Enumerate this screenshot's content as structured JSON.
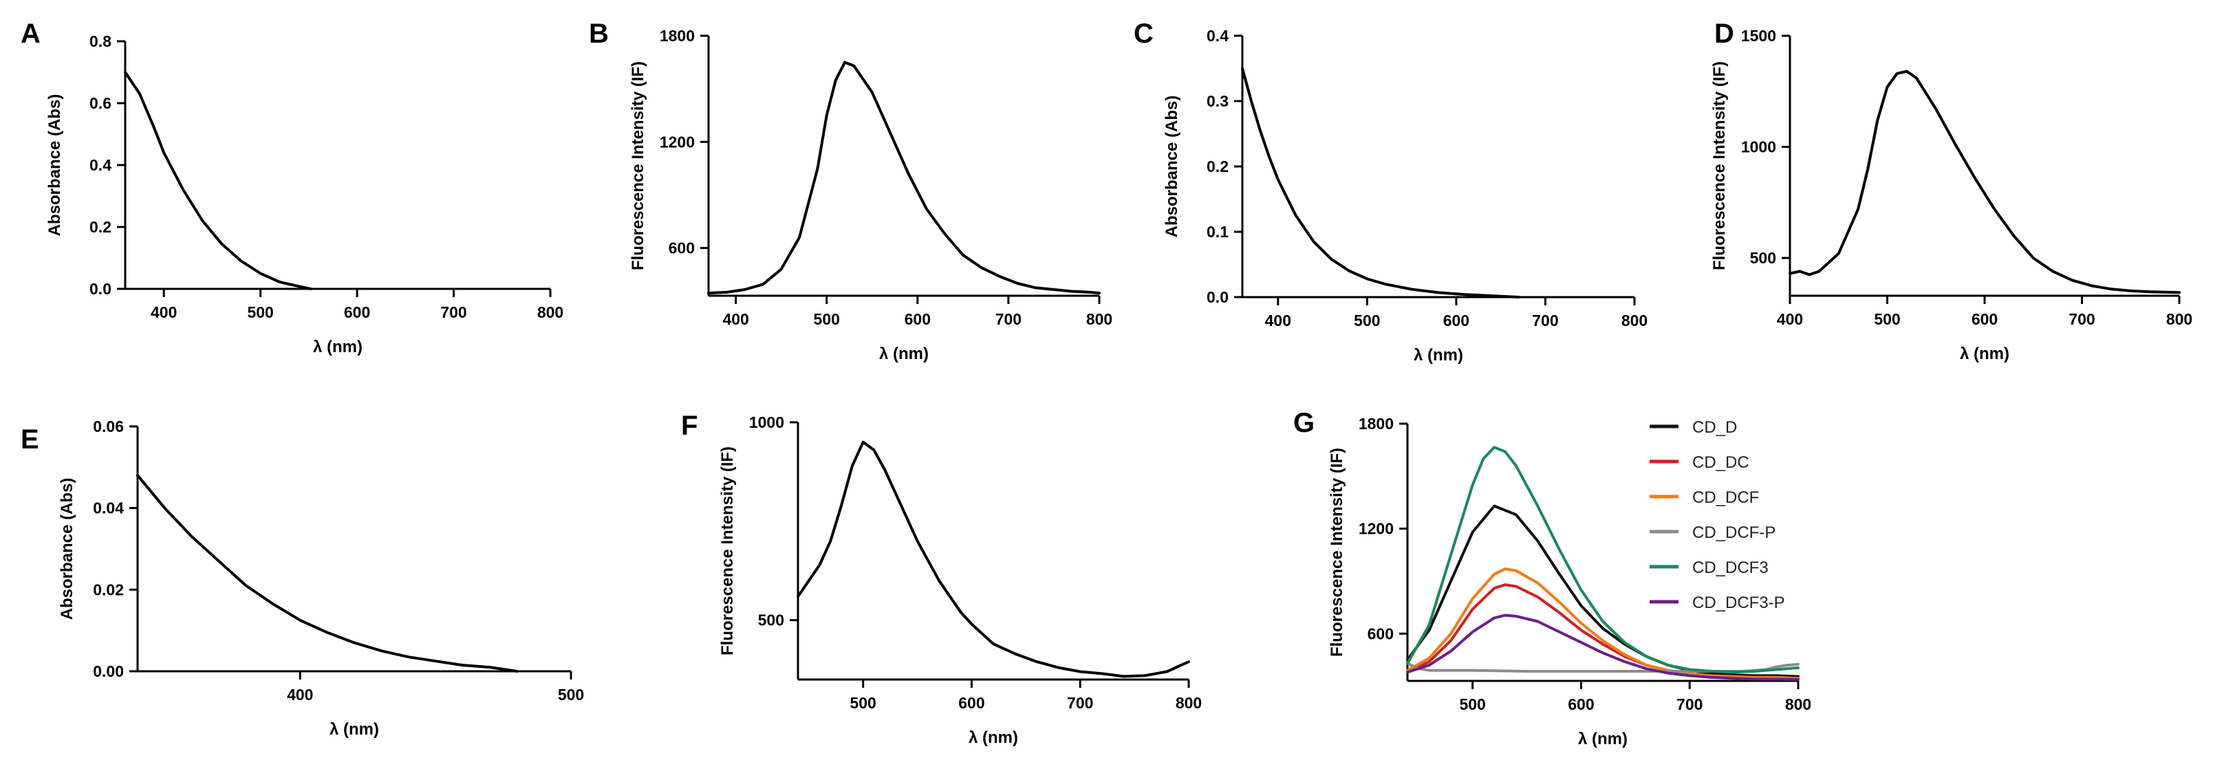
{
  "chart_data": [
    {
      "panel": "A",
      "type": "line",
      "xlabel": "λ (nm)",
      "ylabel": "Absorbance (Abs)",
      "xlim": [
        360,
        800
      ],
      "ylim": [
        0,
        0.8
      ],
      "xticks": [
        400,
        500,
        600,
        700,
        800
      ],
      "yticks": [
        0.0,
        0.2,
        0.4,
        0.6,
        0.8
      ],
      "xtick_labels": [
        "400",
        "500",
        "600",
        "700",
        "800"
      ],
      "ytick_labels": [
        "0.0",
        "0.2",
        "0.4",
        "0.6",
        "0.8"
      ],
      "grid": false,
      "series": [
        {
          "color": "#000000",
          "x": [
            360,
            375,
            390,
            400,
            420,
            440,
            460,
            480,
            500,
            520,
            540,
            552
          ],
          "y": [
            0.7,
            0.63,
            0.52,
            0.44,
            0.32,
            0.22,
            0.145,
            0.09,
            0.05,
            0.022,
            0.008,
            0.0
          ]
        }
      ]
    },
    {
      "panel": "B",
      "type": "line",
      "xlabel": "λ (nm)",
      "ylabel": "Fluorescence Intensity (IF)",
      "xlim": [
        370,
        800
      ],
      "ylim": [
        330,
        1800
      ],
      "xticks": [
        400,
        500,
        600,
        700,
        800
      ],
      "yticks": [
        600,
        1200,
        1800
      ],
      "xtick_labels": [
        "400",
        "500",
        "600",
        "700",
        "800"
      ],
      "ytick_labels": [
        "600",
        "1200",
        "1800"
      ],
      "grid": false,
      "series": [
        {
          "color": "#000000",
          "x": [
            370,
            390,
            410,
            430,
            450,
            470,
            490,
            500,
            510,
            520,
            530,
            550,
            570,
            590,
            610,
            630,
            650,
            670,
            690,
            710,
            730,
            750,
            770,
            790,
            800
          ],
          "y": [
            345,
            350,
            365,
            395,
            480,
            660,
            1050,
            1350,
            1550,
            1650,
            1630,
            1480,
            1250,
            1020,
            820,
            680,
            560,
            490,
            440,
            400,
            375,
            365,
            355,
            350,
            345
          ]
        }
      ]
    },
    {
      "panel": "C",
      "type": "line",
      "xlabel": "λ (nm)",
      "ylabel": "Absorbance (Abs)",
      "xlim": [
        360,
        800
      ],
      "ylim": [
        0,
        0.4
      ],
      "xticks": [
        400,
        500,
        600,
        700,
        800
      ],
      "yticks": [
        0.0,
        0.1,
        0.2,
        0.3,
        0.4
      ],
      "xtick_labels": [
        "400",
        "500",
        "600",
        "700",
        "800"
      ],
      "ytick_labels": [
        "0.0",
        "0.1",
        "0.2",
        "0.3",
        "0.4"
      ],
      "grid": false,
      "series": [
        {
          "color": "#000000",
          "x": [
            360,
            370,
            380,
            390,
            400,
            420,
            440,
            460,
            480,
            500,
            520,
            550,
            580,
            610,
            640,
            670
          ],
          "y": [
            0.35,
            0.3,
            0.255,
            0.215,
            0.18,
            0.125,
            0.085,
            0.058,
            0.04,
            0.028,
            0.02,
            0.012,
            0.007,
            0.004,
            0.002,
            0.0
          ]
        }
      ]
    },
    {
      "panel": "D",
      "type": "line",
      "xlabel": "λ (nm)",
      "ylabel": "Fluorescence Intensity (IF)",
      "xlim": [
        400,
        800
      ],
      "ylim": [
        330,
        1500
      ],
      "xticks": [
        400,
        500,
        600,
        700,
        800
      ],
      "yticks": [
        500,
        1000,
        1500
      ],
      "xtick_labels": [
        "400",
        "500",
        "600",
        "700",
        "800"
      ],
      "ytick_labels": [
        "500",
        "1000",
        "1500"
      ],
      "grid": false,
      "series": [
        {
          "color": "#000000",
          "x": [
            400,
            410,
            420,
            430,
            450,
            470,
            480,
            490,
            500,
            510,
            520,
            530,
            550,
            570,
            590,
            610,
            630,
            650,
            670,
            690,
            710,
            730,
            750,
            770,
            800
          ],
          "y": [
            430,
            440,
            425,
            440,
            520,
            720,
            900,
            1120,
            1270,
            1330,
            1340,
            1310,
            1170,
            1010,
            860,
            720,
            600,
            500,
            440,
            400,
            375,
            360,
            352,
            348,
            345
          ]
        }
      ]
    },
    {
      "panel": "E",
      "type": "line",
      "xlabel": "λ (nm)",
      "ylabel": "Absorbance (Abs)",
      "xlim": [
        340,
        500
      ],
      "ylim": [
        0,
        0.06
      ],
      "xticks": [
        400,
        500
      ],
      "yticks": [
        0.0,
        0.02,
        0.04,
        0.06
      ],
      "xtick_labels": [
        "400",
        "500"
      ],
      "ytick_labels": [
        "0.00",
        "0.02",
        "0.04",
        "0.06"
      ],
      "grid": false,
      "series": [
        {
          "color": "#000000",
          "x": [
            340,
            350,
            360,
            370,
            380,
            390,
            400,
            410,
            420,
            430,
            440,
            450,
            460,
            470,
            475,
            480
          ],
          "y": [
            0.048,
            0.04,
            0.033,
            0.027,
            0.021,
            0.0165,
            0.0125,
            0.0095,
            0.007,
            0.005,
            0.0035,
            0.0025,
            0.0015,
            0.001,
            0.0005,
            0.0
          ]
        }
      ]
    },
    {
      "panel": "F",
      "type": "line",
      "xlabel": "λ (nm)",
      "ylabel": "Fluorescence Intensity (IF)",
      "xlim": [
        440,
        800
      ],
      "ylim": [
        350,
        1000
      ],
      "xticks": [
        500,
        600,
        700,
        800
      ],
      "yticks": [
        500,
        1000
      ],
      "xtick_labels": [
        "500",
        "600",
        "700",
        "800"
      ],
      "ytick_labels": [
        "500",
        "1000"
      ],
      "grid": false,
      "series": [
        {
          "color": "#000000",
          "x": [
            440,
            450,
            460,
            470,
            480,
            490,
            500,
            510,
            520,
            530,
            540,
            550,
            560,
            570,
            580,
            590,
            600,
            620,
            640,
            660,
            680,
            700,
            720,
            740,
            760,
            780,
            800
          ],
          "y": [
            560,
            600,
            640,
            700,
            790,
            890,
            950,
            930,
            880,
            820,
            760,
            700,
            650,
            600,
            560,
            520,
            490,
            440,
            415,
            395,
            380,
            370,
            365,
            358,
            360,
            370,
            395
          ]
        }
      ]
    },
    {
      "panel": "G",
      "type": "line",
      "xlabel": "λ (nm)",
      "ylabel": "Fluorescence Intensity (IF)",
      "xlim": [
        440,
        800
      ],
      "ylim": [
        330,
        1800
      ],
      "xticks": [
        500,
        600,
        700,
        800
      ],
      "yticks": [
        600,
        1200,
        1800
      ],
      "xtick_labels": [
        "500",
        "600",
        "700",
        "800"
      ],
      "ytick_labels": [
        "600",
        "1200",
        "1800"
      ],
      "grid": false,
      "legend": "top-right",
      "series": [
        {
          "name": "CD_D",
          "color": "#111111",
          "x": [
            440,
            460,
            480,
            500,
            520,
            540,
            560,
            580,
            600,
            620,
            640,
            660,
            680,
            700,
            720,
            740,
            760,
            780,
            800
          ],
          "y": [
            450,
            620,
            900,
            1180,
            1330,
            1280,
            1130,
            940,
            760,
            630,
            540,
            470,
            420,
            390,
            370,
            365,
            360,
            360,
            355
          ]
        },
        {
          "name": "CD_DC",
          "color": "#d42020",
          "x": [
            440,
            460,
            480,
            500,
            520,
            530,
            540,
            560,
            580,
            600,
            620,
            640,
            660,
            680,
            700,
            720,
            740,
            760,
            780,
            800
          ],
          "y": [
            380,
            440,
            560,
            740,
            860,
            880,
            870,
            810,
            720,
            620,
            540,
            470,
            420,
            390,
            370,
            360,
            355,
            350,
            350,
            345
          ]
        },
        {
          "name": "CD_DCF",
          "color": "#f07d14",
          "x": [
            440,
            460,
            480,
            500,
            520,
            530,
            540,
            560,
            580,
            600,
            620,
            640,
            660,
            680,
            700,
            720,
            740,
            760,
            780,
            800
          ],
          "y": [
            390,
            460,
            600,
            800,
            940,
            970,
            960,
            890,
            780,
            660,
            560,
            480,
            420,
            390,
            370,
            360,
            355,
            350,
            350,
            345
          ]
        },
        {
          "name": "CD_DCF-P",
          "color": "#8c8c8c",
          "x": [
            440,
            450,
            460,
            500,
            550,
            600,
            650,
            700,
            750,
            770,
            780,
            790,
            800
          ],
          "y": [
            430,
            400,
            390,
            390,
            385,
            385,
            385,
            385,
            385,
            395,
            410,
            420,
            425
          ]
        },
        {
          "name": "CD_DCF3",
          "color": "#1a8a5a",
          "x": [
            440,
            460,
            480,
            500,
            510,
            520,
            530,
            540,
            560,
            580,
            600,
            620,
            640,
            660,
            680,
            700,
            720,
            740,
            760,
            780,
            800
          ],
          "y": [
            430,
            650,
            1050,
            1450,
            1600,
            1665,
            1640,
            1560,
            1330,
            1080,
            850,
            670,
            550,
            470,
            420,
            395,
            385,
            380,
            385,
            395,
            405
          ]
        },
        {
          "name": "CD_DCF3-P",
          "color": "#6a1f8a",
          "x": [
            440,
            460,
            480,
            500,
            520,
            530,
            540,
            560,
            580,
            600,
            620,
            640,
            660,
            680,
            700,
            720,
            740,
            760,
            780,
            800
          ],
          "y": [
            380,
            420,
            500,
            610,
            690,
            705,
            700,
            670,
            610,
            550,
            490,
            440,
            400,
            375,
            360,
            350,
            345,
            340,
            340,
            338
          ]
        }
      ]
    }
  ]
}
